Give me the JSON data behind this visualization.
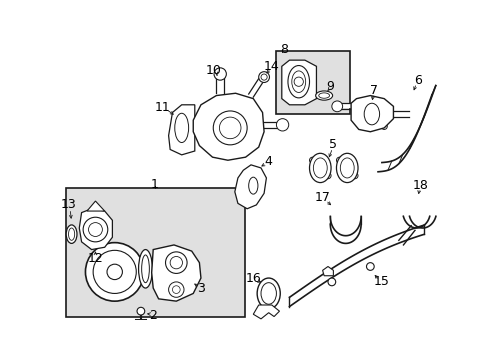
{
  "bg_color": "#ffffff",
  "line_color": "#1a1a1a",
  "box1_fill": "#e0e0e0",
  "box8_fill": "#e0e0e0",
  "label_fs": 9
}
